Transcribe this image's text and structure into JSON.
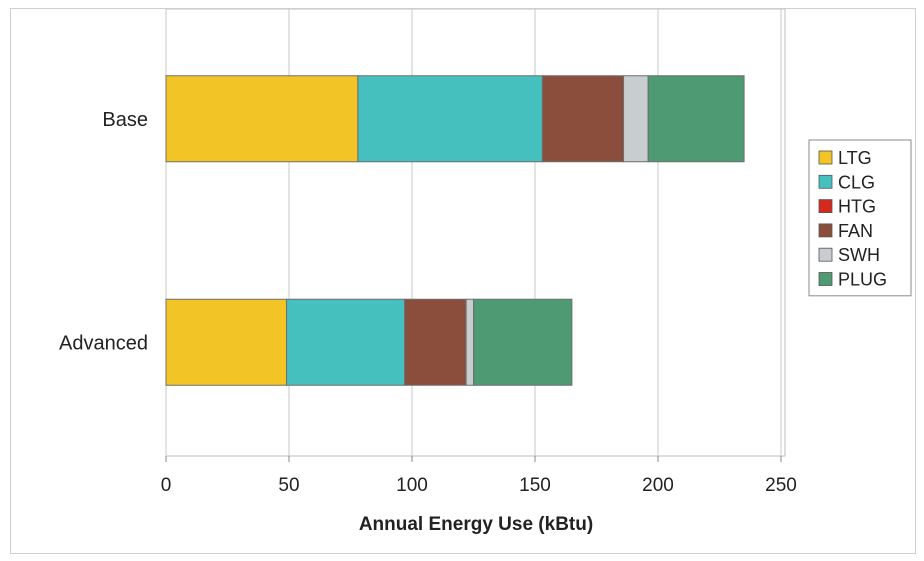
{
  "chart_data": {
    "type": "bar",
    "orientation": "horizontal",
    "stacked": true,
    "categories": [
      "Base",
      "Advanced"
    ],
    "series": [
      {
        "name": "LTG",
        "color": "#F2C426",
        "values": [
          78,
          49
        ]
      },
      {
        "name": "CLG",
        "color": "#45C0BE",
        "values": [
          75,
          48
        ]
      },
      {
        "name": "HTG",
        "color": "#D42A1E",
        "values": [
          0,
          0
        ]
      },
      {
        "name": "FAN",
        "color": "#8C4E3C",
        "values": [
          33,
          25
        ]
      },
      {
        "name": "SWH",
        "color": "#C8CDD0",
        "values": [
          10,
          3
        ]
      },
      {
        "name": "PLUG",
        "color": "#4E9A72",
        "values": [
          39,
          40
        ]
      }
    ],
    "xlabel": "Annual Energy Use (kBtu)",
    "ylabel": "",
    "xlim": [
      0,
      250
    ],
    "xticks": [
      "0",
      "50",
      "100",
      "150",
      "200",
      "250"
    ],
    "grid": "vertical",
    "legend": "right"
  }
}
